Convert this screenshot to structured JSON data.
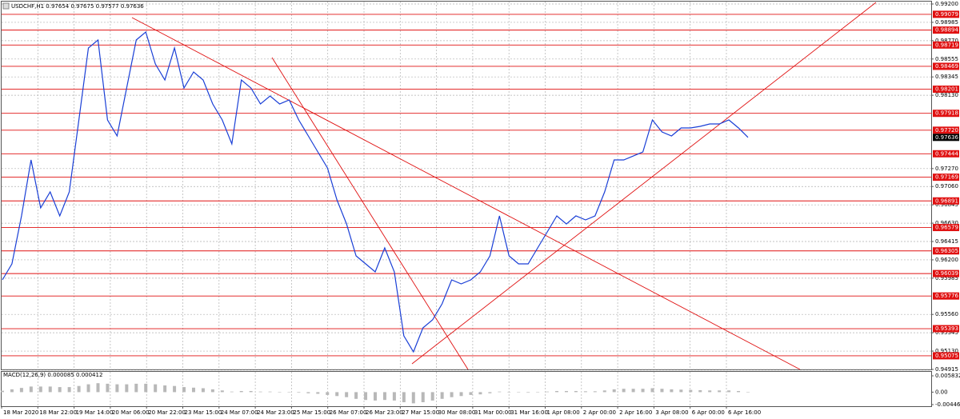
{
  "chart_data": [
    {
      "type": "line",
      "title": "USDCHF,H1  0.97654 0.97675 0.97577 0.97636",
      "x_labels": [
        "18 Mar 2020",
        "18 Mar 22:00",
        "19 Mar 14:00",
        "20 Mar 06:00",
        "20 Mar 22:00",
        "23 Mar 15:00",
        "24 Mar 07:00",
        "24 Mar 23:00",
        "25 Mar 15:00",
        "26 Mar 07:00",
        "26 Mar 23:00",
        "27 Mar 15:00",
        "30 Mar 08:00",
        "31 Mar 00:00",
        "31 Mar 16:00",
        "1 Apr 08:00",
        "2 Apr 00:00",
        "2 Apr 16:00",
        "3 Apr 08:00",
        "6 Apr 00:00",
        "6 Apr 16:00"
      ],
      "values": [
        0.95965,
        0.96153,
        0.96715,
        0.97372,
        0.96809,
        0.96997,
        0.96715,
        0.96997,
        0.9784,
        0.98684,
        0.98778,
        0.9784,
        0.97653,
        0.98215,
        0.98778,
        0.98872,
        0.98497,
        0.98309,
        0.98684,
        0.98215,
        0.98403,
        0.98309,
        0.98028,
        0.9784,
        0.97559,
        0.98309,
        0.98215,
        0.98028,
        0.98122,
        0.98028,
        0.98075,
        0.9784,
        0.97653,
        0.97465,
        0.97278,
        0.96903,
        0.96621,
        0.96246,
        0.96153,
        0.96059,
        0.9634,
        0.96059,
        0.95309,
        0.95121,
        0.95403,
        0.95496,
        0.95684,
        0.95965,
        0.95918,
        0.95965,
        0.96059,
        0.96246,
        0.96715,
        0.96246,
        0.96153,
        0.96153,
        0.9634,
        0.96528,
        0.96715,
        0.96621,
        0.96715,
        0.96668,
        0.96715,
        0.96997,
        0.97372,
        0.97372,
        0.97418,
        0.97465,
        0.9784,
        0.977,
        0.97653,
        0.97747,
        0.97747,
        0.97765,
        0.97794,
        0.97794,
        0.9784,
        0.97747,
        0.97636
      ],
      "color": "#1a3fd6",
      "ylim": [
        0.94915,
        0.992
      ],
      "yticks": [
        {
          "value": 0.992,
          "label": "0.99200"
        },
        {
          "value": 0.98985,
          "label": "0.98985"
        },
        {
          "value": 0.9877,
          "label": "0.98770"
        },
        {
          "value": 0.98555,
          "label": "0.98555"
        },
        {
          "value": 0.98345,
          "label": "0.98345"
        },
        {
          "value": 0.9813,
          "label": "0.98130"
        },
        {
          "value": 0.9727,
          "label": "0.97270"
        },
        {
          "value": 0.9706,
          "label": "0.97060"
        },
        {
          "value": 0.96845,
          "label": "0.96845"
        },
        {
          "value": 0.9663,
          "label": "0.96630"
        },
        {
          "value": 0.96415,
          "label": "0.96415"
        },
        {
          "value": 0.962,
          "label": "0.96200"
        },
        {
          "value": 0.95985,
          "label": "0.95985"
        },
        {
          "value": 0.9556,
          "label": "0.95560"
        },
        {
          "value": 0.95345,
          "label": "0.95345"
        },
        {
          "value": 0.9513,
          "label": "0.95130"
        },
        {
          "value": 0.94915,
          "label": "0.94915"
        }
      ],
      "levels": [
        {
          "value": 0.99079,
          "label": "0.99079"
        },
        {
          "value": 0.98894,
          "label": "0.98894"
        },
        {
          "value": 0.98719,
          "label": "0.98719"
        },
        {
          "value": 0.98469,
          "label": "0.98469"
        },
        {
          "value": 0.98201,
          "label": "0.98201"
        },
        {
          "value": 0.97918,
          "label": "0.97918"
        },
        {
          "value": 0.9772,
          "label": "0.97720"
        },
        {
          "value": 0.97444,
          "label": "0.97444"
        },
        {
          "value": 0.97169,
          "label": "0.97169"
        },
        {
          "value": 0.96891,
          "label": "0.96891"
        },
        {
          "value": 0.96579,
          "label": "0.96579"
        },
        {
          "value": 0.96305,
          "label": "0.96305"
        },
        {
          "value": 0.96039,
          "label": "0.96039"
        },
        {
          "value": 0.95776,
          "label": "0.95776"
        },
        {
          "value": 0.95393,
          "label": "0.95393"
        },
        {
          "value": 0.95075,
          "label": "0.95075"
        }
      ],
      "level_color": "#e01010",
      "current_price": 0.97636,
      "grid": true
    },
    {
      "type": "bar",
      "title": "MACD(12,26,9) 0.000085 0.000412",
      "values": [
        0.0005,
        0.001,
        0.0015,
        0.002,
        0.002,
        0.002,
        0.0018,
        0.0018,
        0.0022,
        0.0028,
        0.0032,
        0.003,
        0.0028,
        0.0028,
        0.003,
        0.003,
        0.0028,
        0.0024,
        0.0022,
        0.0018,
        0.0016,
        0.0014,
        0.001,
        0.0006,
        0.0002,
        0.0004,
        0.0004,
        0.0002,
        0.0002,
        0.0001,
        0,
        -0.0002,
        -0.0004,
        -0.0006,
        -0.001,
        -0.0014,
        -0.0018,
        -0.0024,
        -0.0028,
        -0.003,
        -0.0028,
        -0.003,
        -0.0036,
        -0.004,
        -0.0036,
        -0.003,
        -0.0024,
        -0.0018,
        -0.0014,
        -0.001,
        -0.0008,
        -0.0004,
        0.0002,
        0.0001,
        -0.0001,
        -0.0002,
        0,
        0.0002,
        0.0004,
        0.0004,
        0.0004,
        0.0003,
        0.0003,
        0.0006,
        0.001,
        0.0012,
        0.0012,
        0.0012,
        0.0014,
        0.0012,
        0.001,
        0.0009,
        0.0008,
        0.0007,
        0.0006,
        0.0006,
        0.0006,
        0.0004,
        0.0001
      ],
      "color": "#b8b8b8",
      "ylim": [
        -0.004461,
        0.005832
      ],
      "yticks": [
        0.005832,
        {
          "value": 0,
          "label": "0.00"
        },
        -0.004461
      ]
    }
  ]
}
